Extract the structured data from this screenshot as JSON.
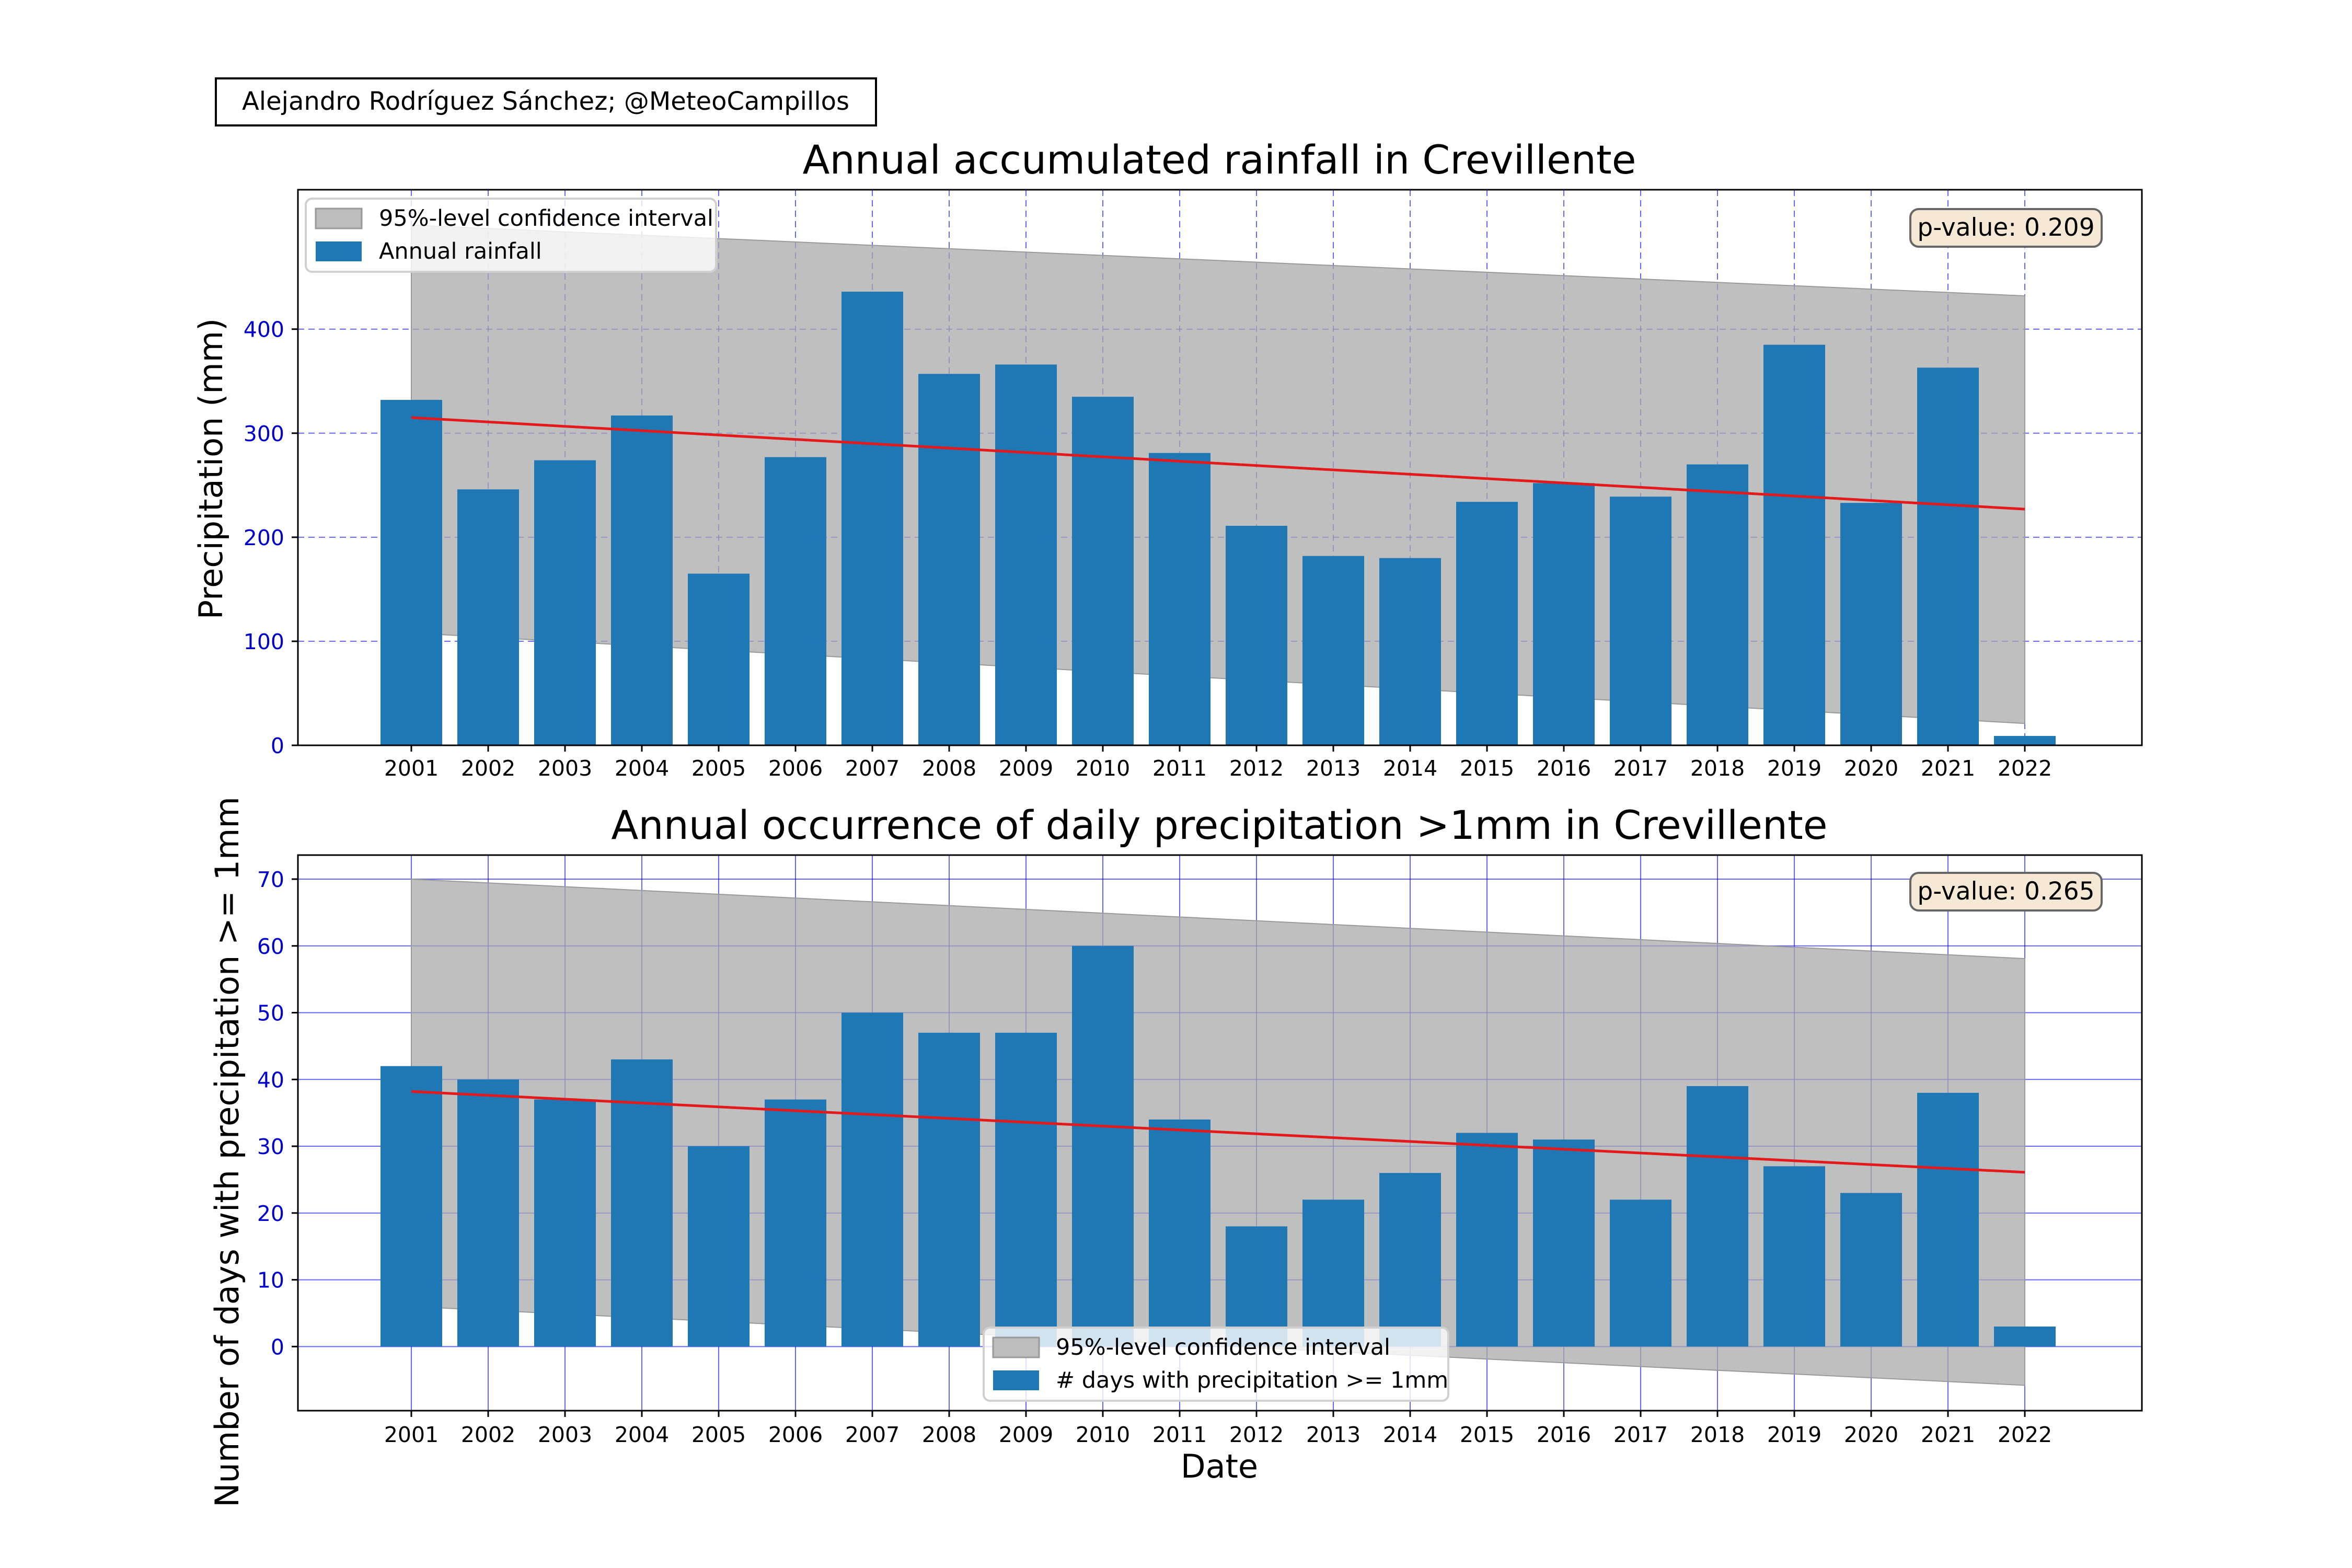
{
  "credit": "Alejandro Rodríguez Sánchez; @MeteoCampillos",
  "chart_data": [
    {
      "type": "bar",
      "title": "Annual accumulated rainfall in Crevillente",
      "xlabel": "",
      "ylabel": "Precipitation (mm)",
      "categories": [
        "2001",
        "2002",
        "2003",
        "2004",
        "2005",
        "2006",
        "2007",
        "2008",
        "2009",
        "2010",
        "2011",
        "2012",
        "2013",
        "2014",
        "2015",
        "2016",
        "2017",
        "2018",
        "2019",
        "2020",
        "2021",
        "2022"
      ],
      "series": [
        {
          "name": "Annual rainfall",
          "values": [
            332,
            246,
            274,
            317,
            165,
            277,
            436,
            357,
            366,
            335,
            281,
            211,
            182,
            180,
            234,
            252,
            239,
            270,
            385,
            233,
            363,
            9
          ],
          "color": "#1f77b4"
        }
      ],
      "trend": {
        "start": 315,
        "end": 227,
        "color": "#e31a1c"
      },
      "confidence_interval": {
        "name": "95%-level confidence interval",
        "upper": [
          500,
          432
        ],
        "lower": [
          108,
          21
        ],
        "color": "#a9a9a9"
      },
      "annotation": "p-value: 0.209",
      "ylim": [
        0,
        534
      ],
      "yticks": [
        0,
        100,
        200,
        300,
        400
      ],
      "grid": "dashed",
      "grid_color": "#0000ff",
      "legend_placement": "top-left"
    },
    {
      "type": "bar",
      "title": "Annual occurrence of daily precipitation >1mm in Crevillente",
      "xlabel": "Date",
      "ylabel": "Number of days with precipitation >= 1mm",
      "categories": [
        "2001",
        "2002",
        "2003",
        "2004",
        "2005",
        "2006",
        "2007",
        "2008",
        "2009",
        "2010",
        "2011",
        "2012",
        "2013",
        "2014",
        "2015",
        "2016",
        "2017",
        "2018",
        "2019",
        "2020",
        "2021",
        "2022"
      ],
      "series": [
        {
          "name": "# days with precipitation >= 1mm",
          "values": [
            42,
            40,
            37,
            43,
            30,
            37,
            50,
            47,
            47,
            60,
            34,
            18,
            22,
            26,
            32,
            31,
            22,
            39,
            27,
            23,
            38,
            3
          ],
          "color": "#1f77b4"
        }
      ],
      "trend": {
        "start": 38.2,
        "end": 26.1,
        "color": "#e31a1c"
      },
      "confidence_interval": {
        "name": "95%-level confidence interval",
        "upper": [
          70,
          58.1
        ],
        "lower": [
          6,
          -5.8
        ],
        "color": "#a9a9a9"
      },
      "annotation": "p-value: 0.265",
      "ylim": [
        -9.6,
        73.6
      ],
      "yticks": [
        0,
        10,
        20,
        30,
        40,
        50,
        60,
        70
      ],
      "grid": "solid",
      "grid_color": "#0000ff",
      "legend_placement": "lower-center"
    }
  ]
}
